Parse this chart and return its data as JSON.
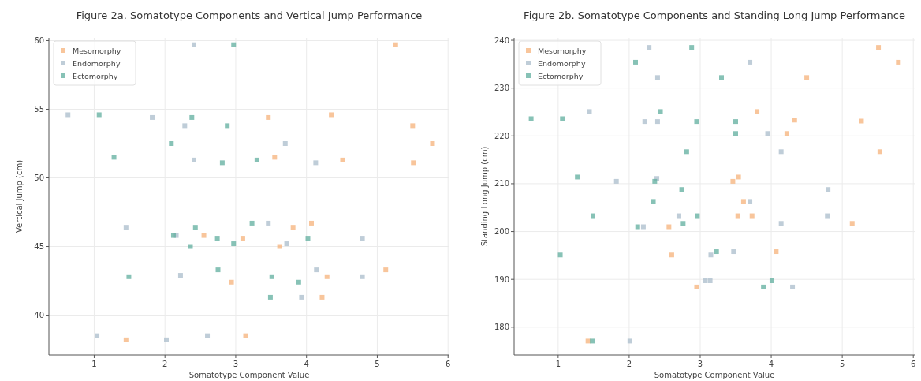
{
  "chart_data": [
    {
      "type": "scatter",
      "title": "Figure 2a. Somatotype Components and Vertical Jump Performance",
      "xlabel": "Somatotype Component Value",
      "ylabel": "Vertical Jump (cm)",
      "xlim": [
        0.36,
        6.02
      ],
      "ylim": [
        37.1,
        60.2
      ],
      "xticks": [
        1,
        2,
        3,
        4,
        5,
        6
      ],
      "yticks": [
        40,
        45,
        50,
        55,
        60
      ],
      "grid": true,
      "legend": "top left",
      "marker": "square",
      "series": [
        {
          "name": "Mesomorphy",
          "color": "#f5b27a",
          "x": [
            5.26,
            4.35,
            3.46,
            5.5,
            5.78,
            3.55,
            5.51,
            4.51,
            3.81,
            4.07,
            2.55,
            3.1,
            3.62,
            5.12,
            4.29,
            2.94,
            4.22,
            1.45,
            3.14
          ],
          "values": [
            59.7,
            54.6,
            54.4,
            53.8,
            52.5,
            51.5,
            51.1,
            51.3,
            46.4,
            46.7,
            45.8,
            45.6,
            45.0,
            43.3,
            42.8,
            42.4,
            41.3,
            38.2,
            38.5
          ]
        },
        {
          "name": "Endomorphy",
          "color": "#a9bccb",
          "x": [
            2.41,
            0.63,
            1.82,
            2.28,
            3.7,
            2.41,
            4.13,
            1.45,
            3.46,
            2.16,
            3.72,
            4.79,
            2.22,
            4.14,
            4.79,
            3.93,
            1.04,
            2.6,
            2.02
          ],
          "values": [
            59.7,
            54.6,
            54.4,
            53.8,
            52.5,
            51.3,
            51.1,
            46.4,
            46.7,
            45.8,
            45.2,
            45.6,
            42.9,
            43.3,
            42.8,
            41.3,
            38.5,
            38.5,
            38.2
          ]
        },
        {
          "name": "Ectomorphy",
          "color": "#5fae9e",
          "x": [
            2.97,
            1.07,
            2.38,
            2.88,
            2.09,
            1.28,
            2.81,
            3.3,
            2.43,
            3.23,
            2.12,
            2.74,
            4.02,
            2.97,
            2.36,
            1.49,
            2.75,
            3.51,
            3.89,
            3.49
          ],
          "values": [
            59.7,
            54.6,
            54.4,
            53.8,
            52.5,
            51.5,
            51.1,
            51.3,
            46.4,
            46.7,
            45.8,
            45.6,
            45.6,
            45.2,
            45.0,
            42.8,
            43.3,
            42.8,
            42.4,
            41.3
          ]
        }
      ]
    },
    {
      "type": "scatter",
      "title": "Figure 2b. Somatotype Components and Standing Long Jump Performance",
      "xlabel": "Somatotype Component Value",
      "ylabel": "Standing Long Jump (cm)",
      "xlim": [
        0.38,
        6.02
      ],
      "ylim": [
        174.2,
        240.5
      ],
      "xticks": [
        1,
        2,
        3,
        4,
        5,
        6
      ],
      "yticks": [
        180,
        190,
        200,
        210,
        220,
        230,
        240
      ],
      "grid": true,
      "legend": "top left",
      "marker": "square",
      "series": [
        {
          "name": "Mesomorphy",
          "color": "#f5b27a",
          "x": [
            5.51,
            5.79,
            4.5,
            3.8,
            4.33,
            5.27,
            4.22,
            5.53,
            3.46,
            3.54,
            3.61,
            3.53,
            3.73,
            2.56,
            5.14,
            2.6,
            4.07,
            2.95,
            1.42
          ],
          "values": [
            238.5,
            235.4,
            232.2,
            225.1,
            223.3,
            223.1,
            220.5,
            216.7,
            210.5,
            211.4,
            206.3,
            203.3,
            203.3,
            201.0,
            201.7,
            195.1,
            195.8,
            188.4,
            177.1
          ]
        },
        {
          "name": "Endomorphy",
          "color": "#a9bccb",
          "x": [
            2.28,
            3.7,
            2.4,
            1.44,
            2.22,
            2.4,
            3.95,
            4.14,
            1.82,
            2.39,
            4.8,
            3.7,
            2.7,
            4.79,
            2.2,
            4.14,
            3.15,
            3.47,
            4.3,
            3.07,
            3.14,
            2.01
          ],
          "values": [
            238.5,
            235.4,
            232.2,
            225.1,
            223.0,
            223.0,
            220.5,
            216.7,
            210.5,
            211.1,
            208.8,
            206.3,
            203.3,
            203.3,
            201.0,
            201.7,
            195.1,
            195.8,
            188.4,
            189.7,
            189.7,
            177.1
          ]
        },
        {
          "name": "Ectomorphy",
          "color": "#5fae9e",
          "x": [
            2.88,
            2.09,
            3.3,
            0.62,
            1.06,
            2.44,
            2.95,
            3.5,
            3.5,
            2.81,
            1.27,
            2.36,
            2.74,
            2.34,
            1.49,
            2.96,
            2.12,
            2.76,
            1.03,
            3.23,
            3.89,
            4.01,
            1.48
          ],
          "values": [
            238.5,
            235.4,
            232.2,
            223.6,
            223.6,
            225.1,
            223.0,
            223.0,
            220.5,
            216.7,
            211.4,
            210.5,
            208.8,
            206.3,
            203.3,
            203.3,
            201.0,
            201.7,
            195.1,
            195.8,
            188.4,
            189.7,
            177.1
          ]
        }
      ]
    }
  ]
}
